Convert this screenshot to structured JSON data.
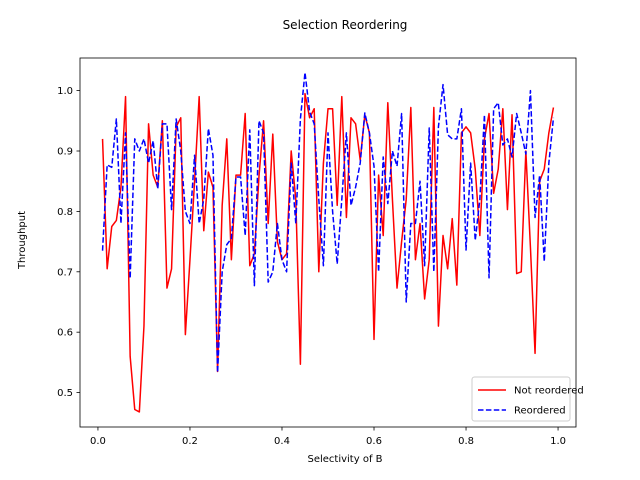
{
  "chart_data": {
    "type": "line",
    "title": "Selection Reordering",
    "xlabel": "Selectivity of B",
    "ylabel": "Throughput",
    "xlim": [
      -0.039,
      1.039
    ],
    "ylim": [
      0.443,
      1.054
    ],
    "xticks": [
      0.0,
      0.2,
      0.4,
      0.6,
      0.8,
      1.0
    ],
    "xtick_labels": [
      "0.0",
      "0.2",
      "0.4",
      "0.6",
      "0.8",
      "1.0"
    ],
    "yticks": [
      0.5,
      0.6,
      0.7,
      0.8,
      0.9,
      1.0
    ],
    "ytick_labels": [
      "0.5",
      "0.6",
      "0.7",
      "0.8",
      "0.9",
      "1.0"
    ],
    "grid": false,
    "legend_position": "lower right",
    "x": [
      0.01,
      0.02,
      0.03,
      0.04,
      0.05,
      0.06,
      0.07,
      0.08,
      0.09,
      0.1,
      0.11,
      0.12,
      0.13,
      0.14,
      0.15,
      0.16,
      0.17,
      0.18,
      0.19,
      0.2,
      0.21,
      0.22,
      0.23,
      0.24,
      0.25,
      0.26,
      0.27,
      0.28,
      0.29,
      0.3,
      0.31,
      0.32,
      0.33,
      0.34,
      0.35,
      0.36,
      0.37,
      0.38,
      0.39,
      0.4,
      0.41,
      0.42,
      0.43,
      0.44,
      0.45,
      0.46,
      0.47,
      0.48,
      0.49,
      0.5,
      0.51,
      0.52,
      0.53,
      0.54,
      0.55,
      0.56,
      0.57,
      0.58,
      0.59,
      0.6,
      0.61,
      0.62,
      0.63,
      0.64,
      0.65,
      0.66,
      0.67,
      0.68,
      0.69,
      0.7,
      0.71,
      0.72,
      0.73,
      0.74,
      0.75,
      0.76,
      0.77,
      0.78,
      0.79,
      0.8,
      0.81,
      0.82,
      0.83,
      0.84,
      0.85,
      0.86,
      0.87,
      0.88,
      0.89,
      0.9,
      0.91,
      0.92,
      0.93,
      0.94,
      0.95,
      0.96,
      0.97,
      0.98,
      0.99
    ],
    "series": [
      {
        "name": "Not reordered",
        "color": "#ff0000",
        "style": "solid",
        "values": [
          0.92,
          0.705,
          0.775,
          0.785,
          0.84,
          0.99,
          0.56,
          0.472,
          0.468,
          0.61,
          0.945,
          0.86,
          0.84,
          0.95,
          0.673,
          0.705,
          0.94,
          0.955,
          0.596,
          0.72,
          0.85,
          0.99,
          0.768,
          0.865,
          0.84,
          0.535,
          0.81,
          0.92,
          0.72,
          0.86,
          0.86,
          0.962,
          0.71,
          0.73,
          0.858,
          0.95,
          0.78,
          0.928,
          0.75,
          0.72,
          0.73,
          0.9,
          0.82,
          0.547,
          0.995,
          0.955,
          0.97,
          0.7,
          0.88,
          0.97,
          0.97,
          0.81,
          0.99,
          0.79,
          0.955,
          0.945,
          0.885,
          0.96,
          0.93,
          0.588,
          0.86,
          0.76,
          0.98,
          0.82,
          0.673,
          0.75,
          0.82,
          0.972,
          0.72,
          0.78,
          0.655,
          0.72,
          0.972,
          0.61,
          0.76,
          0.705,
          0.788,
          0.678,
          0.93,
          0.94,
          0.93,
          0.87,
          0.76,
          0.92,
          0.962,
          0.83,
          0.87,
          0.97,
          0.803,
          0.96,
          0.697,
          0.7,
          0.9,
          0.74,
          0.565,
          0.85,
          0.87,
          0.93,
          0.972
        ]
      },
      {
        "name": "Reordered",
        "color": "#0000ff",
        "style": "dashed",
        "values": [
          0.735,
          0.877,
          0.873,
          0.953,
          0.78,
          0.93,
          0.689,
          0.92,
          0.9,
          0.92,
          0.88,
          0.917,
          0.837,
          0.945,
          0.945,
          0.803,
          0.953,
          0.9,
          0.8,
          0.78,
          0.893,
          0.78,
          0.82,
          0.937,
          0.893,
          0.533,
          0.7,
          0.745,
          0.755,
          0.857,
          0.857,
          0.76,
          0.935,
          0.677,
          0.95,
          0.93,
          0.683,
          0.7,
          0.78,
          0.72,
          0.7,
          0.88,
          0.78,
          0.953,
          1.03,
          0.965,
          0.945,
          0.82,
          0.71,
          0.93,
          0.8,
          0.713,
          0.82,
          0.93,
          0.81,
          0.84,
          0.88,
          0.963,
          0.93,
          0.875,
          0.7,
          0.89,
          0.813,
          0.9,
          0.875,
          0.962,
          0.65,
          0.78,
          0.78,
          0.85,
          0.71,
          0.938,
          0.7,
          0.94,
          1.01,
          0.927,
          0.92,
          0.92,
          0.97,
          0.736,
          0.88,
          0.752,
          0.82,
          0.96,
          0.69,
          0.97,
          0.98,
          0.91,
          0.92,
          0.89,
          0.962,
          0.93,
          0.895,
          1.0,
          0.79,
          0.86,
          0.717,
          0.88,
          0.955
        ]
      }
    ]
  }
}
